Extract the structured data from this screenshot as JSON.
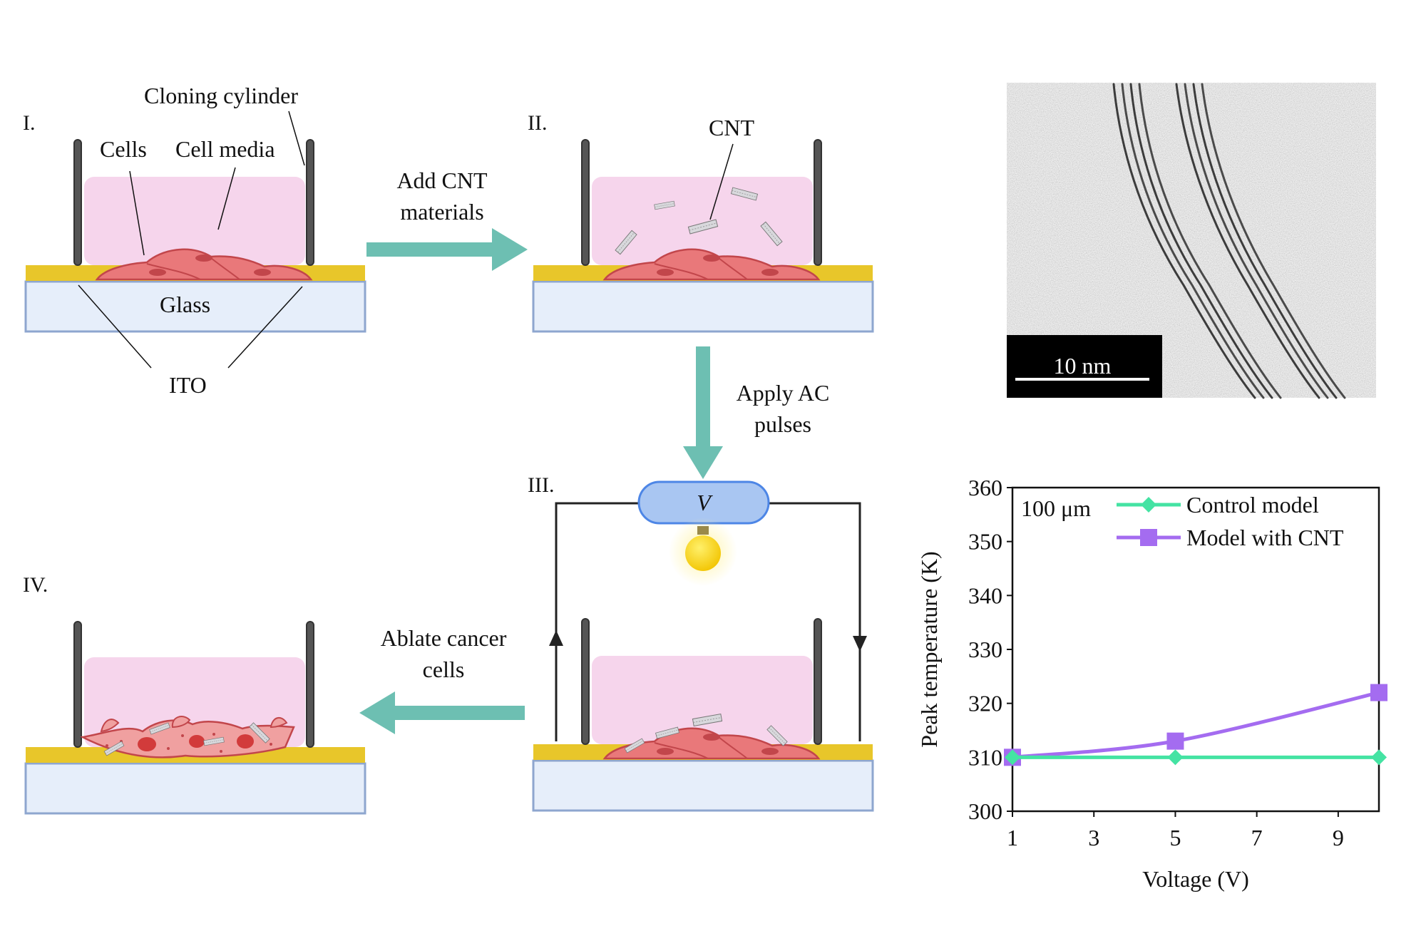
{
  "panels": {
    "p1": {
      "roman": "I.",
      "cloning_cylinder": "Cloning cylinder",
      "cells": "Cells",
      "cell_media": "Cell media",
      "glass": "Glass",
      "ito": "ITO"
    },
    "p2": {
      "roman": "II.",
      "cnt": "CNT"
    },
    "p3": {
      "roman": "III.",
      "voltage": "V"
    },
    "p4": {
      "roman": "IV."
    }
  },
  "arrows": {
    "a1": {
      "line1": "Add CNT",
      "line2": "materials"
    },
    "a2": {
      "line1": "Apply AC",
      "line2": "pulses"
    },
    "a3": {
      "line1": "Ablate cancer",
      "line2": "cells"
    }
  },
  "micrograph": {
    "scale_label": "10 nm"
  },
  "colors": {
    "media": "#f6d5ec",
    "ito": "#e8c62a",
    "glass": "#e6eefa",
    "cell": "#e9787a",
    "arrow": "#6dbfb2",
    "control": "#44e3a3",
    "cnt_series": "#a46cf0"
  },
  "chart_data": {
    "type": "line",
    "annotation": "100 μm",
    "xlabel": "Voltage (V)",
    "ylabel": "Peak temperature (K)",
    "xlim": [
      1,
      10
    ],
    "ylim": [
      300,
      360
    ],
    "xticks": [
      1,
      3,
      5,
      7,
      9
    ],
    "yticks": [
      300,
      310,
      320,
      330,
      340,
      350,
      360
    ],
    "legend_position": "top-right",
    "series": [
      {
        "name": "Control model",
        "x": [
          1,
          5,
          10
        ],
        "y": [
          310,
          310,
          310
        ],
        "marker": "diamond",
        "color": "#44e3a3"
      },
      {
        "name": "Model with CNT",
        "x": [
          1,
          5,
          10
        ],
        "y": [
          310,
          313,
          322
        ],
        "marker": "square",
        "color": "#a46cf0"
      }
    ]
  }
}
